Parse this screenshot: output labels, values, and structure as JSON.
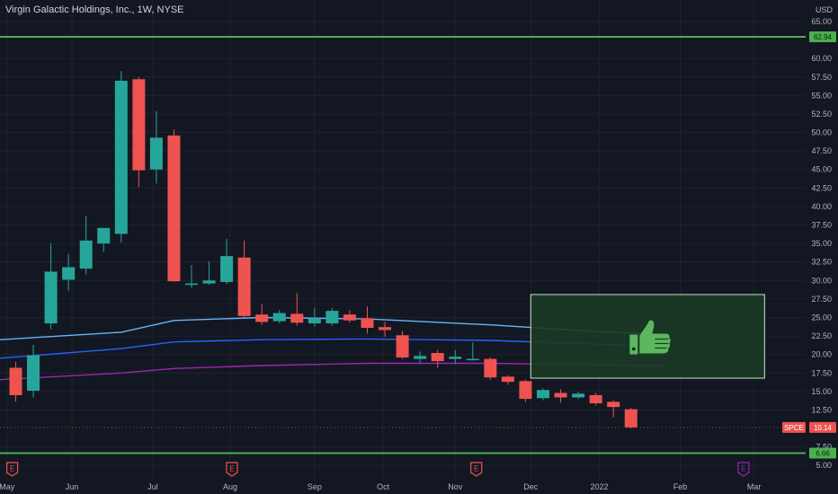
{
  "header": {
    "title": "Virgin Galactic Holdings, Inc., 1W, NYSE",
    "unit_top": "",
    "unit": "USD"
  },
  "colors": {
    "background": "#131722",
    "up": "#26a69a",
    "down": "#ef5350",
    "grid": "#1e222d",
    "axis_text": "#b2b5be",
    "hline": "#4caf50",
    "band_upper": "#64b5f6",
    "band_mid": "#2962ff",
    "band_lower": "#9c27b0",
    "box_fill": "#1b3a26",
    "box_stroke": "#c8e6c9",
    "thumb": "#5cb85c",
    "earnings_marker": "#ef5350",
    "earnings_future": "#9c27b0"
  },
  "chart_data": {
    "type": "candlestick",
    "title": "Virgin Galactic Holdings, Inc., 1W, NYSE",
    "currency": "USD",
    "ylim": [
      5.0,
      67.0
    ],
    "y_ticks": [
      5.0,
      7.5,
      12.5,
      15.0,
      17.5,
      20.0,
      22.5,
      25.0,
      27.5,
      30.0,
      32.5,
      35.0,
      37.5,
      40.0,
      42.5,
      45.0,
      47.5,
      50.0,
      52.5,
      55.0,
      57.5,
      60.0,
      65.0
    ],
    "y_tick_labels": [
      "5.00",
      "7.50",
      "12.50",
      "15.00",
      "17.50",
      "20.00",
      "22.50",
      "25.00",
      "27.50",
      "30.00",
      "32.50",
      "35.00",
      "37.50",
      "40.00",
      "42.50",
      "45.00",
      "47.50",
      "50.00",
      "52.50",
      "55.00",
      "57.50",
      "60.00",
      "65.00"
    ],
    "x_ticks": [
      {
        "label": "May",
        "week": -0.5
      },
      {
        "label": "Jun",
        "week": 3.2
      },
      {
        "label": "Jul",
        "week": 7.8
      },
      {
        "label": "Aug",
        "week": 12.2
      },
      {
        "label": "Sep",
        "week": 17.0
      },
      {
        "label": "Oct",
        "week": 20.9
      },
      {
        "label": "Nov",
        "week": 25.0
      },
      {
        "label": "Dec",
        "week": 29.3
      },
      {
        "label": "2022",
        "week": 33.2
      },
      {
        "label": "Feb",
        "week": 37.8
      },
      {
        "label": "Mar",
        "week": 42.0
      }
    ],
    "candles": [
      {
        "o": 18.2,
        "h": 19.0,
        "l": 13.6,
        "c": 14.5
      },
      {
        "o": 15.1,
        "h": 21.3,
        "l": 14.2,
        "c": 19.9
      },
      {
        "o": 24.2,
        "h": 35.0,
        "l": 23.4,
        "c": 31.2
      },
      {
        "o": 30.1,
        "h": 33.6,
        "l": 28.6,
        "c": 31.8
      },
      {
        "o": 31.6,
        "h": 38.7,
        "l": 30.8,
        "c": 35.4
      },
      {
        "o": 35.0,
        "h": 36.9,
        "l": 33.9,
        "c": 37.1
      },
      {
        "o": 36.3,
        "h": 58.3,
        "l": 35.1,
        "c": 57.0
      },
      {
        "o": 57.2,
        "h": 57.5,
        "l": 42.6,
        "c": 44.9
      },
      {
        "o": 45.0,
        "h": 52.9,
        "l": 43.1,
        "c": 49.3
      },
      {
        "o": 49.6,
        "h": 50.4,
        "l": 29.8,
        "c": 29.9
      },
      {
        "o": 29.4,
        "h": 32.1,
        "l": 29.0,
        "c": 29.6
      },
      {
        "o": 29.6,
        "h": 32.6,
        "l": 29.4,
        "c": 30.0
      },
      {
        "o": 29.8,
        "h": 35.6,
        "l": 29.5,
        "c": 33.3
      },
      {
        "o": 33.1,
        "h": 35.4,
        "l": 25.0,
        "c": 25.2
      },
      {
        "o": 25.4,
        "h": 26.8,
        "l": 24.0,
        "c": 24.4
      },
      {
        "o": 24.5,
        "h": 26.0,
        "l": 24.2,
        "c": 25.6
      },
      {
        "o": 25.5,
        "h": 28.3,
        "l": 23.9,
        "c": 24.3
      },
      {
        "o": 24.2,
        "h": 26.3,
        "l": 23.8,
        "c": 24.9
      },
      {
        "o": 24.2,
        "h": 26.3,
        "l": 23.9,
        "c": 25.9
      },
      {
        "o": 25.4,
        "h": 26.0,
        "l": 24.3,
        "c": 24.6
      },
      {
        "o": 24.9,
        "h": 26.5,
        "l": 22.8,
        "c": 23.6
      },
      {
        "o": 23.7,
        "h": 24.4,
        "l": 22.4,
        "c": 23.3
      },
      {
        "o": 22.6,
        "h": 23.2,
        "l": 19.4,
        "c": 19.6
      },
      {
        "o": 19.4,
        "h": 20.4,
        "l": 18.8,
        "c": 19.8
      },
      {
        "o": 20.2,
        "h": 20.6,
        "l": 18.2,
        "c": 19.1
      },
      {
        "o": 19.4,
        "h": 20.6,
        "l": 18.7,
        "c": 19.7
      },
      {
        "o": 19.4,
        "h": 21.6,
        "l": 19.2,
        "c": 19.4
      },
      {
        "o": 19.4,
        "h": 19.6,
        "l": 16.6,
        "c": 16.9
      },
      {
        "o": 17.0,
        "h": 17.2,
        "l": 15.9,
        "c": 16.3
      },
      {
        "o": 16.4,
        "h": 16.6,
        "l": 13.6,
        "c": 14.0
      },
      {
        "o": 14.1,
        "h": 15.4,
        "l": 13.8,
        "c": 15.2
      },
      {
        "o": 14.8,
        "h": 15.3,
        "l": 13.5,
        "c": 14.2
      },
      {
        "o": 14.2,
        "h": 15.0,
        "l": 14.0,
        "c": 14.7
      },
      {
        "o": 14.5,
        "h": 14.8,
        "l": 13.1,
        "c": 13.4
      },
      {
        "o": 13.6,
        "h": 13.8,
        "l": 11.5,
        "c": 12.9
      },
      {
        "o": 12.6,
        "h": 12.8,
        "l": 10.0,
        "c": 10.14
      }
    ],
    "bands": {
      "upper": [
        [
          1,
          22.0
        ],
        [
          6,
          23.0
        ],
        [
          9,
          24.6
        ],
        [
          14,
          25.0
        ],
        [
          20,
          24.8
        ],
        [
          27,
          24.0
        ],
        [
          33,
          23.1
        ],
        [
          37,
          22.7
        ]
      ],
      "middle": [
        [
          1,
          19.5
        ],
        [
          6,
          20.8
        ],
        [
          9,
          21.7
        ],
        [
          14,
          22.0
        ],
        [
          20,
          22.1
        ],
        [
          27,
          21.9
        ],
        [
          33,
          21.4
        ],
        [
          37,
          21.1
        ]
      ],
      "lower": [
        [
          1,
          16.6
        ],
        [
          6,
          17.5
        ],
        [
          9,
          18.1
        ],
        [
          14,
          18.5
        ],
        [
          20,
          18.8
        ],
        [
          27,
          18.8
        ],
        [
          33,
          18.6
        ],
        [
          37,
          18.5
        ]
      ]
    },
    "horizontal_lines": [
      {
        "value": 62.94,
        "label": "62.94"
      },
      {
        "value": 6.66,
        "label": "6.66"
      }
    ],
    "last_price": {
      "symbol": "SPCE",
      "value": 10.14,
      "label": "10.14"
    },
    "highlight_box": {
      "from_week": 29.3,
      "to_week": 42.6,
      "y_top": 28.1,
      "y_bottom": 16.8,
      "icon": "thumbs-up-icon"
    },
    "earnings_markers": [
      {
        "week": -0.2,
        "label": "E"
      },
      {
        "week": 12.3,
        "label": "E"
      },
      {
        "week": 26.2,
        "label": "E",
        "future": false
      },
      {
        "week": 41.4,
        "label": "E",
        "future": true
      }
    ]
  }
}
